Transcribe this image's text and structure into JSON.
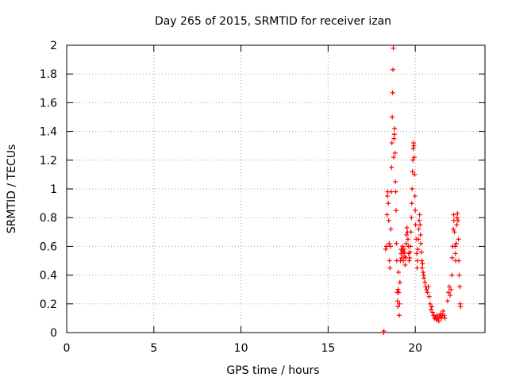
{
  "chart_data": {
    "type": "scatter",
    "title": "Day 265 of 2015, SRMTID for receiver izan",
    "xlabel": "GPS time / hours",
    "ylabel": "SRMTID / TECUs",
    "xlim": [
      0,
      24
    ],
    "ylim": [
      0,
      2
    ],
    "xticks": [
      0,
      5,
      10,
      15,
      20
    ],
    "xtick_labels": [
      "0",
      "5",
      "10",
      "15",
      "20"
    ],
    "yticks": [
      0,
      0.2,
      0.4,
      0.6,
      0.8,
      1,
      1.2,
      1.4,
      1.6,
      1.8,
      2
    ],
    "ytick_labels": [
      "0",
      "0.2",
      "0.4",
      "0.6",
      "0.8",
      "1",
      "1.2",
      "1.4",
      "1.6",
      "1.8",
      "2"
    ],
    "grid": true,
    "marker": "plus",
    "series": [
      {
        "name": "SRMTID",
        "color": "#ff0000",
        "points": [
          [
            18.18,
            0.0
          ],
          [
            18.2,
            0.01
          ],
          [
            18.3,
            0.58
          ],
          [
            18.35,
            0.6
          ],
          [
            18.38,
            0.82
          ],
          [
            18.4,
            0.95
          ],
          [
            18.42,
            0.98
          ],
          [
            18.45,
            0.9
          ],
          [
            18.48,
            0.78
          ],
          [
            18.5,
            0.62
          ],
          [
            18.52,
            0.5
          ],
          [
            18.55,
            0.45
          ],
          [
            18.58,
            0.6
          ],
          [
            18.6,
            0.72
          ],
          [
            18.62,
            0.98
          ],
          [
            18.64,
            1.15
          ],
          [
            18.66,
            1.32
          ],
          [
            18.68,
            1.5
          ],
          [
            18.7,
            1.67
          ],
          [
            18.72,
            1.83
          ],
          [
            18.74,
            1.98
          ],
          [
            18.76,
            1.22
          ],
          [
            18.78,
            1.35
          ],
          [
            18.8,
            1.38
          ],
          [
            18.82,
            1.42
          ],
          [
            18.84,
            1.25
          ],
          [
            18.86,
            1.05
          ],
          [
            18.88,
            0.98
          ],
          [
            18.9,
            0.85
          ],
          [
            18.92,
            0.62
          ],
          [
            18.94,
            0.5
          ],
          [
            18.96,
            0.28
          ],
          [
            18.98,
            0.22
          ],
          [
            19.0,
            0.18
          ],
          [
            19.02,
            0.3
          ],
          [
            19.04,
            0.42
          ],
          [
            19.06,
            0.28
          ],
          [
            19.08,
            0.12
          ],
          [
            19.1,
            0.2
          ],
          [
            19.12,
            0.35
          ],
          [
            19.15,
            0.5
          ],
          [
            19.18,
            0.55
          ],
          [
            19.2,
            0.58
          ],
          [
            19.22,
            0.52
          ],
          [
            19.25,
            0.57
          ],
          [
            19.28,
            0.6
          ],
          [
            19.3,
            0.55
          ],
          [
            19.32,
            0.5
          ],
          [
            19.35,
            0.58
          ],
          [
            19.38,
            0.56
          ],
          [
            19.4,
            0.53
          ],
          [
            19.42,
            0.47
          ],
          [
            19.45,
            0.52
          ],
          [
            19.48,
            0.62
          ],
          [
            19.5,
            0.68
          ],
          [
            19.52,
            0.73
          ],
          [
            19.55,
            0.7
          ],
          [
            19.58,
            0.65
          ],
          [
            19.6,
            0.6
          ],
          [
            19.62,
            0.55
          ],
          [
            19.65,
            0.5
          ],
          [
            19.68,
            0.52
          ],
          [
            19.7,
            0.56
          ],
          [
            19.72,
            0.6
          ],
          [
            19.75,
            0.7
          ],
          [
            19.78,
            0.8
          ],
          [
            19.8,
            0.9
          ],
          [
            19.82,
            1.0
          ],
          [
            19.84,
            1.12
          ],
          [
            19.86,
            1.2
          ],
          [
            19.88,
            1.28
          ],
          [
            19.9,
            1.32
          ],
          [
            19.92,
            1.3
          ],
          [
            19.94,
            1.22
          ],
          [
            19.96,
            1.1
          ],
          [
            19.98,
            0.95
          ],
          [
            20.0,
            0.85
          ],
          [
            20.02,
            0.75
          ],
          [
            20.05,
            0.65
          ],
          [
            20.08,
            0.55
          ],
          [
            20.1,
            0.45
          ],
          [
            20.12,
            0.5
          ],
          [
            20.15,
            0.58
          ],
          [
            20.18,
            0.65
          ],
          [
            20.2,
            0.72
          ],
          [
            20.22,
            0.78
          ],
          [
            20.25,
            0.82
          ],
          [
            20.28,
            0.75
          ],
          [
            20.3,
            0.68
          ],
          [
            20.32,
            0.62
          ],
          [
            20.35,
            0.56
          ],
          [
            20.38,
            0.5
          ],
          [
            20.4,
            0.45
          ],
          [
            20.42,
            0.48
          ],
          [
            20.45,
            0.42
          ],
          [
            20.48,
            0.4
          ],
          [
            20.5,
            0.38
          ],
          [
            20.55,
            0.35
          ],
          [
            20.6,
            0.32
          ],
          [
            20.65,
            0.3
          ],
          [
            20.7,
            0.28
          ],
          [
            20.75,
            0.32
          ],
          [
            20.8,
            0.25
          ],
          [
            20.85,
            0.2
          ],
          [
            20.9,
            0.16
          ],
          [
            20.95,
            0.18
          ],
          [
            21.0,
            0.14
          ],
          [
            21.05,
            0.12
          ],
          [
            21.1,
            0.1
          ],
          [
            21.15,
            0.11
          ],
          [
            21.2,
            0.09
          ],
          [
            21.25,
            0.12
          ],
          [
            21.3,
            0.1
          ],
          [
            21.35,
            0.08
          ],
          [
            21.4,
            0.11
          ],
          [
            21.45,
            0.13
          ],
          [
            21.5,
            0.1
          ],
          [
            21.55,
            0.12
          ],
          [
            21.6,
            0.15
          ],
          [
            21.65,
            0.12
          ],
          [
            21.7,
            0.1
          ],
          [
            21.85,
            0.22
          ],
          [
            21.9,
            0.28
          ],
          [
            21.95,
            0.32
          ],
          [
            22.0,
            0.26
          ],
          [
            22.05,
            0.3
          ],
          [
            22.1,
            0.4
          ],
          [
            22.12,
            0.52
          ],
          [
            22.15,
            0.6
          ],
          [
            22.18,
            0.72
          ],
          [
            22.2,
            0.82
          ],
          [
            22.22,
            0.78
          ],
          [
            22.25,
            0.7
          ],
          [
            22.28,
            0.6
          ],
          [
            22.3,
            0.55
          ],
          [
            22.32,
            0.5
          ],
          [
            22.35,
            0.62
          ],
          [
            22.38,
            0.75
          ],
          [
            22.4,
            0.8
          ],
          [
            22.42,
            0.83
          ],
          [
            22.45,
            0.78
          ],
          [
            22.48,
            0.65
          ],
          [
            22.5,
            0.5
          ],
          [
            22.52,
            0.4
          ],
          [
            22.55,
            0.32
          ],
          [
            22.58,
            0.2
          ],
          [
            22.6,
            0.18
          ]
        ]
      }
    ]
  }
}
